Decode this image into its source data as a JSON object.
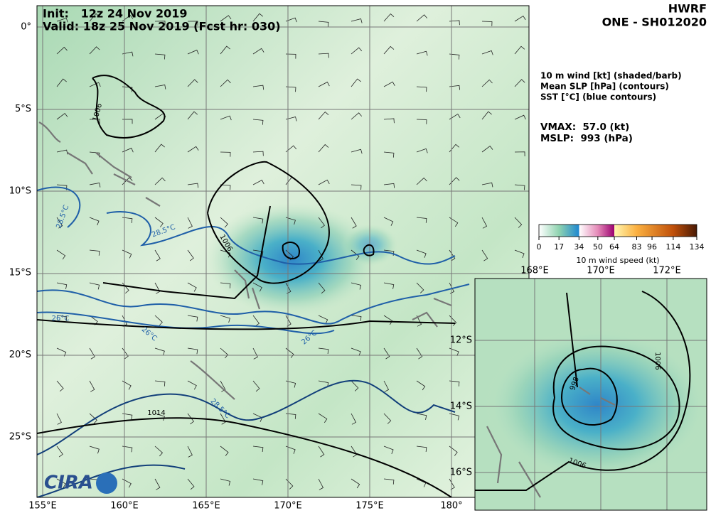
{
  "header": {
    "init": "Init:   12z 24 Nov 2019",
    "valid": "Valid: 18z 25 Nov 2019 (Fcst hr: 030)",
    "model": "HWRF",
    "storm": "ONE - SH012020"
  },
  "legend": {
    "lines": [
      "10 m wind [kt] (shaded/barb)",
      "Mean SLP [hPa] (contours)",
      "SST [°C] (blue contours)"
    ],
    "vmax": "VMAX:  57.0 (kt)",
    "mslp": "MSLP:  993 (hPa)"
  },
  "colorbar": {
    "label": "10 m wind speed (kt)",
    "range": [
      0,
      134
    ],
    "ticks": [
      0,
      17,
      34,
      50,
      64,
      83,
      96,
      114,
      134
    ]
  },
  "main_map": {
    "lat_labels": [
      "0°",
      "5°S",
      "10°S",
      "15°S",
      "20°S",
      "25°S"
    ],
    "lon_labels": [
      "155°E",
      "160°E",
      "165°E",
      "170°E",
      "175°E",
      "180°"
    ],
    "contour_labels": [
      "1006",
      "1006",
      "1014",
      "28.5°C",
      "28.5°C",
      "26°C",
      "26°C",
      "26°C",
      "28.5°C"
    ]
  },
  "inset_map": {
    "lon_labels": [
      "168°E",
      "170°E",
      "172°E"
    ],
    "lat_labels": [
      "12°S",
      "14°S",
      "16°S"
    ],
    "contour_labels": [
      "998",
      "1006",
      "1006"
    ]
  },
  "logo": "CIRA"
}
